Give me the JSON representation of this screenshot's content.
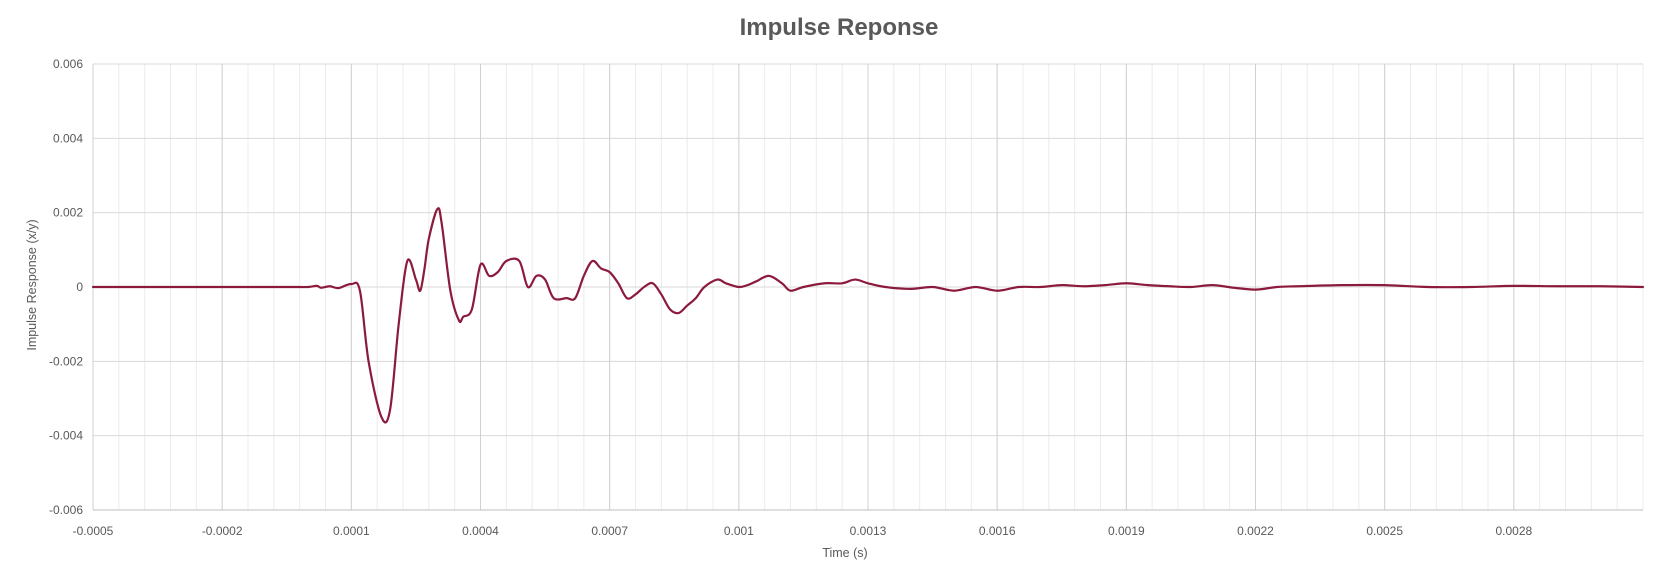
{
  "chart_data": {
    "type": "line",
    "title": "Impulse Reponse",
    "xlabel": "Time (s)",
    "ylabel": "Impulse Response (x/y)",
    "xlim": [
      -0.0005,
      0.0031
    ],
    "ylim": [
      -0.006,
      0.006
    ],
    "x_ticks": [
      -0.0005,
      -0.0002,
      0.0001,
      0.0004,
      0.0007,
      0.001,
      0.0013,
      0.0016,
      0.0019,
      0.0022,
      0.0025,
      0.0028
    ],
    "x_tick_labels": [
      "-0.0005",
      "-0.0002",
      "0.0001",
      "0.0004",
      "0.0007",
      "0.001",
      "0.0013",
      "0.0016",
      "0.0019",
      "0.0022",
      "0.0025",
      "0.0028"
    ],
    "y_ticks": [
      -0.006,
      -0.004,
      -0.002,
      0,
      0.002,
      0.004,
      0.006
    ],
    "y_tick_labels": [
      "-0.006",
      "-0.004",
      "-0.002",
      "0",
      "0.002",
      "0.004",
      "0.006"
    ],
    "grid": true,
    "legend": "none",
    "line_color": "#8b1a3c",
    "series": [
      {
        "x": [
          -0.0005,
          -0.00045,
          -0.0004,
          -0.00035,
          -0.0003,
          -0.00025,
          -0.0002,
          -0.00015,
          -0.0001,
          -5e-05,
          -2e-05,
          0.0,
          2e-05,
          3e-05,
          5e-05,
          7e-05,
          0.0001,
          0.00012,
          0.00014,
          0.00017,
          0.00019,
          0.00021,
          0.00023,
          0.00025,
          0.00026,
          0.00027,
          0.00028,
          0.0003,
          0.00031,
          0.00033,
          0.00035,
          0.00036,
          0.00038,
          0.0004,
          0.00042,
          0.00044,
          0.00046,
          0.00049,
          0.00051,
          0.00053,
          0.00055,
          0.00057,
          0.0006,
          0.00062,
          0.00064,
          0.00066,
          0.00068,
          0.0007,
          0.00072,
          0.00074,
          0.00076,
          0.00078,
          0.0008,
          0.00082,
          0.00084,
          0.00086,
          0.00088,
          0.0009,
          0.00092,
          0.00095,
          0.00097,
          0.001,
          0.00102,
          0.00104,
          0.00107,
          0.0011,
          0.00112,
          0.00115,
          0.0012,
          0.00124,
          0.00127,
          0.0013,
          0.00134,
          0.0014,
          0.00145,
          0.0015,
          0.00155,
          0.0016,
          0.00165,
          0.0017,
          0.00175,
          0.0018,
          0.00185,
          0.0019,
          0.00195,
          0.002,
          0.00205,
          0.0021,
          0.00215,
          0.0022,
          0.00225,
          0.0023,
          0.0024,
          0.0025,
          0.0026,
          0.0027,
          0.0028,
          0.0029,
          0.003,
          0.0031
        ],
        "y": [
          0.0,
          0.0,
          0.0,
          0.0,
          0.0,
          0.0,
          0.0,
          0.0,
          0.0,
          0.0,
          0.0,
          0.0,
          3e-05,
          -2e-05,
          2e-05,
          -3e-05,
          8e-05,
          -0.0001,
          -0.002,
          -0.0035,
          -0.0033,
          -0.001,
          0.0007,
          0.0002,
          -0.0001,
          0.0005,
          0.0013,
          0.0021,
          0.0017,
          -0.0001,
          -0.0009,
          -0.0008,
          -0.0006,
          0.0006,
          0.0003,
          0.0004,
          0.0007,
          0.0007,
          0.0,
          0.0003,
          0.0002,
          -0.0003,
          -0.0003,
          -0.0003,
          0.0003,
          0.0007,
          0.0005,
          0.0004,
          0.0001,
          -0.0003,
          -0.0002,
          0.0,
          0.0001,
          -0.0002,
          -0.0006,
          -0.0007,
          -0.0005,
          -0.0003,
          0.0,
          0.0002,
          0.0001,
          0.0,
          5e-05,
          0.00015,
          0.0003,
          0.0001,
          -0.0001,
          0.0,
          0.0001,
          0.0001,
          0.0002,
          0.0001,
          0.0,
          -5e-05,
          0.0,
          -0.0001,
          0.0,
          -0.0001,
          0.0,
          0.0,
          5e-05,
          2e-05,
          5e-05,
          0.0001,
          5e-05,
          2e-05,
          0.0,
          5e-05,
          -2e-05,
          -7e-05,
          0.0,
          2e-05,
          5e-05,
          5e-05,
          0.0,
          0.0,
          3e-05,
          2e-05,
          2e-05,
          0.0
        ]
      }
    ]
  }
}
